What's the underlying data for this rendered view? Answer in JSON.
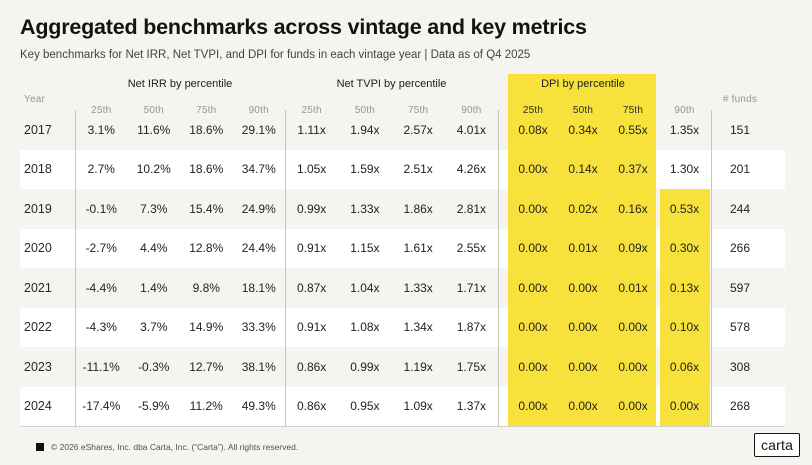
{
  "header": {
    "title": "Aggregated benchmarks across vintage and key metrics",
    "subtitle": "Key benchmarks for Net IRR, Net TVPI, and DPI for funds in each vintage year | Data as of Q4 2025"
  },
  "table": {
    "year_header": "Year",
    "funds_header": "# funds",
    "percentiles": [
      "25th",
      "50th",
      "75th",
      "90th"
    ],
    "groups": [
      {
        "label": "Net IRR by percentile",
        "highlighted": false
      },
      {
        "label": "Net TVPI by percentile",
        "highlighted": false
      },
      {
        "label": "DPI by percentile",
        "highlighted": true
      }
    ],
    "rows": [
      {
        "year": "2017",
        "irr": [
          "3.1%",
          "11.6%",
          "18.6%",
          "29.1%"
        ],
        "tvpi": [
          "1.11x",
          "1.94x",
          "2.57x",
          "4.01x"
        ],
        "dpi": [
          "0.08x",
          "0.34x",
          "0.55x",
          "1.35x"
        ],
        "funds": "151",
        "dpi90_highlighted": false
      },
      {
        "year": "2018",
        "irr": [
          "2.7%",
          "10.2%",
          "18.6%",
          "34.7%"
        ],
        "tvpi": [
          "1.05x",
          "1.59x",
          "2.51x",
          "4.26x"
        ],
        "dpi": [
          "0.00x",
          "0.14x",
          "0.37x",
          "1.30x"
        ],
        "funds": "201",
        "dpi90_highlighted": false
      },
      {
        "year": "2019",
        "irr": [
          "-0.1%",
          "7.3%",
          "15.4%",
          "24.9%"
        ],
        "tvpi": [
          "0.99x",
          "1.33x",
          "1.86x",
          "2.81x"
        ],
        "dpi": [
          "0.00x",
          "0.02x",
          "0.16x",
          "0.53x"
        ],
        "funds": "244",
        "dpi90_highlighted": true
      },
      {
        "year": "2020",
        "irr": [
          "-2.7%",
          "4.4%",
          "12.8%",
          "24.4%"
        ],
        "tvpi": [
          "0.91x",
          "1.15x",
          "1.61x",
          "2.55x"
        ],
        "dpi": [
          "0.00x",
          "0.01x",
          "0.09x",
          "0.30x"
        ],
        "funds": "266",
        "dpi90_highlighted": true
      },
      {
        "year": "2021",
        "irr": [
          "-4.4%",
          "1.4%",
          "9.8%",
          "18.1%"
        ],
        "tvpi": [
          "0.87x",
          "1.04x",
          "1.33x",
          "1.71x"
        ],
        "dpi": [
          "0.00x",
          "0.00x",
          "0.01x",
          "0.13x"
        ],
        "funds": "597",
        "dpi90_highlighted": true
      },
      {
        "year": "2022",
        "irr": [
          "-4.3%",
          "3.7%",
          "14.9%",
          "33.3%"
        ],
        "tvpi": [
          "0.91x",
          "1.08x",
          "1.34x",
          "1.87x"
        ],
        "dpi": [
          "0.00x",
          "0.00x",
          "0.00x",
          "0.10x"
        ],
        "funds": "578",
        "dpi90_highlighted": true
      },
      {
        "year": "2023",
        "irr": [
          "-11.1%",
          "-0.3%",
          "12.7%",
          "38.1%"
        ],
        "tvpi": [
          "0.86x",
          "0.99x",
          "1.19x",
          "1.75x"
        ],
        "dpi": [
          "0.00x",
          "0.00x",
          "0.00x",
          "0.06x"
        ],
        "funds": "308",
        "dpi90_highlighted": true
      },
      {
        "year": "2024",
        "irr": [
          "-17.4%",
          "-5.9%",
          "11.2%",
          "49.3%"
        ],
        "tvpi": [
          "0.86x",
          "0.95x",
          "1.09x",
          "1.37x"
        ],
        "dpi": [
          "0.00x",
          "0.00x",
          "0.00x",
          "0.00x"
        ],
        "funds": "268",
        "dpi90_highlighted": true
      }
    ]
  },
  "colors": {
    "highlight_yellow": "#F6DF2D",
    "page_background": "#F5F4F0",
    "row_white": "#FFFFFF",
    "text_dark": "#24221C",
    "text_gray": "#97958E"
  },
  "footer": {
    "copyright": "© 2026 eShares, Inc. dba Carta, Inc. (“Carta”). All rights reserved.",
    "logo_label": "carta"
  },
  "chart_data": {
    "type": "table",
    "title": "Aggregated benchmarks across vintage and key metrics",
    "subtitle": "Key benchmarks for Net IRR, Net TVPI, and DPI for funds in each vintage year | Data as of Q4 2025",
    "row_header": "Year",
    "column_groups": [
      "Net IRR by percentile",
      "Net TVPI by percentile",
      "DPI by percentile"
    ],
    "percentiles": [
      "25th",
      "50th",
      "75th",
      "90th"
    ],
    "years": [
      2017,
      2018,
      2019,
      2020,
      2021,
      2022,
      2023,
      2024
    ],
    "net_irr_percent": [
      [
        3.1,
        11.6,
        18.6,
        29.1
      ],
      [
        2.7,
        10.2,
        18.6,
        34.7
      ],
      [
        -0.1,
        7.3,
        15.4,
        24.9
      ],
      [
        -2.7,
        4.4,
        12.8,
        24.4
      ],
      [
        -4.4,
        1.4,
        9.8,
        18.1
      ],
      [
        -4.3,
        3.7,
        14.9,
        33.3
      ],
      [
        -11.1,
        -0.3,
        12.7,
        38.1
      ],
      [
        -17.4,
        -5.9,
        11.2,
        49.3
      ]
    ],
    "net_tvpi_x": [
      [
        1.11,
        1.94,
        2.57,
        4.01
      ],
      [
        1.05,
        1.59,
        2.51,
        4.26
      ],
      [
        0.99,
        1.33,
        1.86,
        2.81
      ],
      [
        0.91,
        1.15,
        1.61,
        2.55
      ],
      [
        0.87,
        1.04,
        1.33,
        1.71
      ],
      [
        0.91,
        1.08,
        1.34,
        1.87
      ],
      [
        0.86,
        0.99,
        1.19,
        1.75
      ],
      [
        0.86,
        0.95,
        1.09,
        1.37
      ]
    ],
    "dpi_x": [
      [
        0.08,
        0.34,
        0.55,
        1.35
      ],
      [
        0.0,
        0.14,
        0.37,
        1.3
      ],
      [
        0.0,
        0.02,
        0.16,
        0.53
      ],
      [
        0.0,
        0.01,
        0.09,
        0.3
      ],
      [
        0.0,
        0.0,
        0.01,
        0.13
      ],
      [
        0.0,
        0.0,
        0.0,
        0.1
      ],
      [
        0.0,
        0.0,
        0.0,
        0.06
      ],
      [
        0.0,
        0.0,
        0.0,
        0.0
      ]
    ],
    "num_funds": [
      151,
      201,
      244,
      266,
      597,
      578,
      308,
      268
    ],
    "highlights": "DPI 25th-75th percentile columns highlighted for all vintages; DPI 90th percentile highlighted for 2019-2024"
  }
}
